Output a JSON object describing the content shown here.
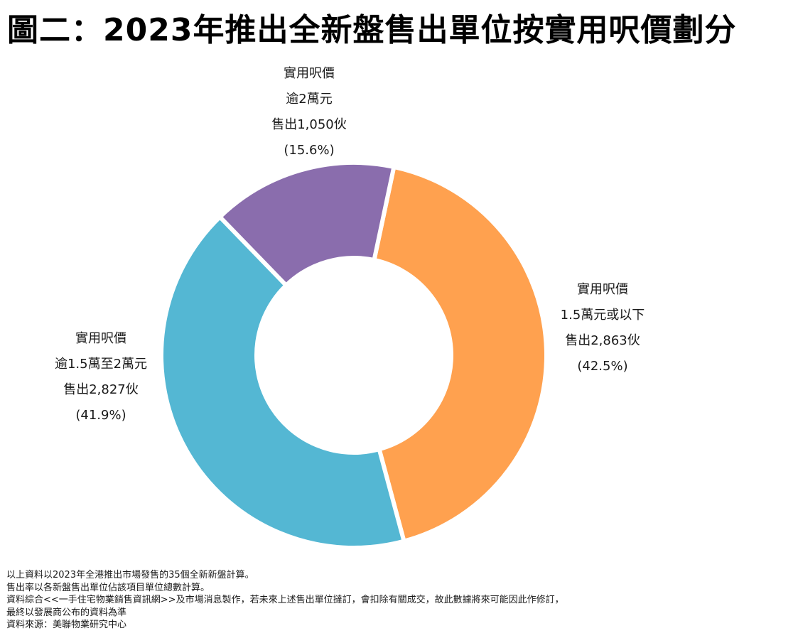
{
  "title": "圖二：2023年推出全新盤售出單位按實用呎價劃分",
  "chart_data": {
    "type": "pie",
    "subtype": "donut",
    "title": "圖二：2023年推出全新盤售出單位按實用呎價劃分",
    "unit": "伙",
    "slices": [
      {
        "name": "實用呎價1.5萬元或以下",
        "label_lines": [
          "實用呎價",
          "1.5萬元或以下",
          "售出2,863伙",
          "(42.5%)"
        ],
        "value": 2863,
        "percent": 42.5,
        "color": "#FFA14F"
      },
      {
        "name": "實用呎價逾1.5萬至2萬元",
        "label_lines": [
          "實用呎價",
          "逾1.5萬至2萬元",
          "售出2,827伙",
          "(41.9%)"
        ],
        "value": 2827,
        "percent": 41.9,
        "color": "#54B7D3"
      },
      {
        "name": "實用呎價逾2萬元",
        "label_lines": [
          "實用呎價",
          "逾2萬元",
          "售出1,050伙",
          "(15.6%)"
        ],
        "value": 1050,
        "percent": 15.6,
        "color": "#8A6DAD"
      }
    ],
    "legend": "none"
  },
  "notes": [
    "以上資料以2023年全港推出市場發售的35個全新新盤計算。",
    "售出率以各新盤售出單位佔該項目單位總數計算。",
    "資料綜合<<一手住宅物業銷售資訊網>>及市場消息製作，若未來上述售出單位撻訂，會扣除有關成交，故此數據將來可能因此作修訂，",
    "最終以發展商公布的資料為準",
    "資料來源：美聯物業研究中心"
  ]
}
